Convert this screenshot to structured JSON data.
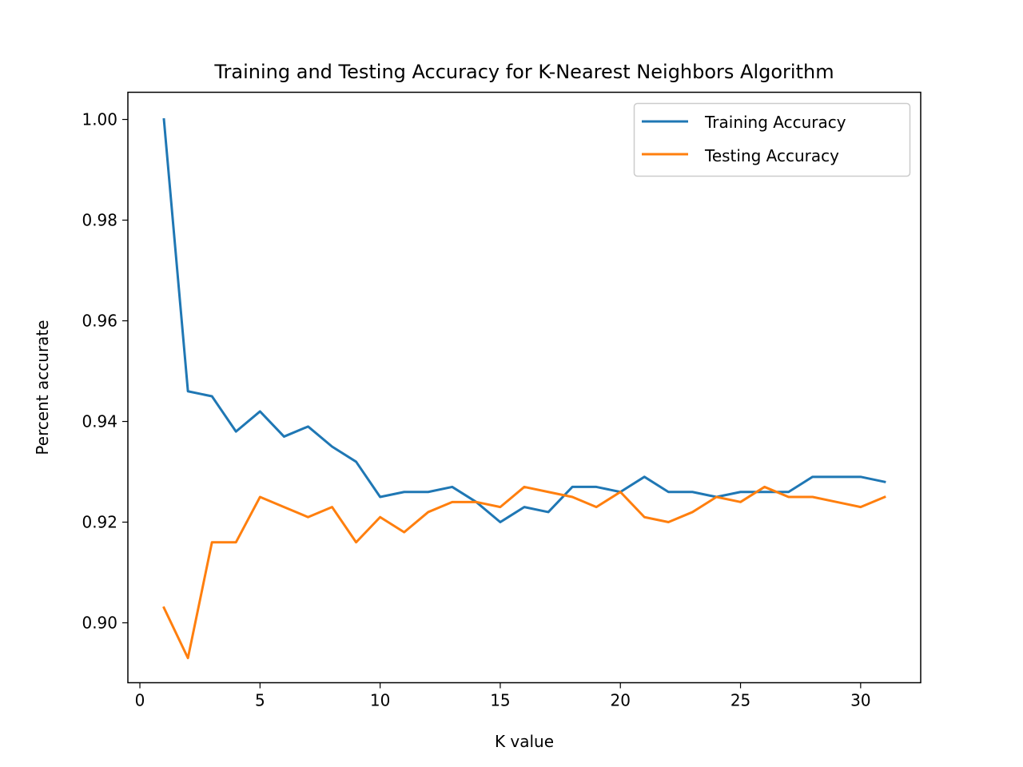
{
  "chart_data": {
    "type": "line",
    "title": "Training and Testing Accuracy for K-Nearest Neighbors Algorithm",
    "xlabel": "K value",
    "ylabel": "Percent accurate",
    "xlim": [
      -0.5,
      32.5
    ],
    "ylim": [
      0.8881,
      1.0054
    ],
    "xticks": [
      0,
      5,
      10,
      15,
      20,
      25,
      30
    ],
    "xtick_labels": [
      "0",
      "5",
      "10",
      "15",
      "20",
      "25",
      "30"
    ],
    "yticks": [
      0.9,
      0.92,
      0.94,
      0.96,
      0.98,
      1.0
    ],
    "ytick_labels": [
      "0.90",
      "0.92",
      "0.94",
      "0.96",
      "0.98",
      "1.00"
    ],
    "grid": false,
    "legend_position": "top-right",
    "x": [
      1,
      2,
      3,
      4,
      5,
      6,
      7,
      8,
      9,
      10,
      11,
      12,
      13,
      14,
      15,
      16,
      17,
      18,
      19,
      20,
      21,
      22,
      23,
      24,
      25,
      26,
      27,
      28,
      29,
      30,
      31
    ],
    "series": [
      {
        "name": "Training Accuracy",
        "color": "#1f77b4",
        "values": [
          1.0,
          0.946,
          0.945,
          0.938,
          0.942,
          0.937,
          0.939,
          0.935,
          0.932,
          0.925,
          0.926,
          0.926,
          0.927,
          0.924,
          0.92,
          0.923,
          0.922,
          0.927,
          0.927,
          0.926,
          0.929,
          0.926,
          0.926,
          0.925,
          0.926,
          0.926,
          0.926,
          0.929,
          0.929,
          0.929,
          0.928
        ]
      },
      {
        "name": "Testing Accuracy",
        "color": "#ff7f0e",
        "values": [
          0.903,
          0.893,
          0.916,
          0.916,
          0.925,
          0.923,
          0.921,
          0.923,
          0.916,
          0.921,
          0.918,
          0.922,
          0.924,
          0.924,
          0.923,
          0.927,
          0.926,
          0.925,
          0.923,
          0.926,
          0.921,
          0.92,
          0.922,
          0.925,
          0.924,
          0.927,
          0.925,
          0.925,
          0.924,
          0.923,
          0.925
        ]
      }
    ]
  }
}
